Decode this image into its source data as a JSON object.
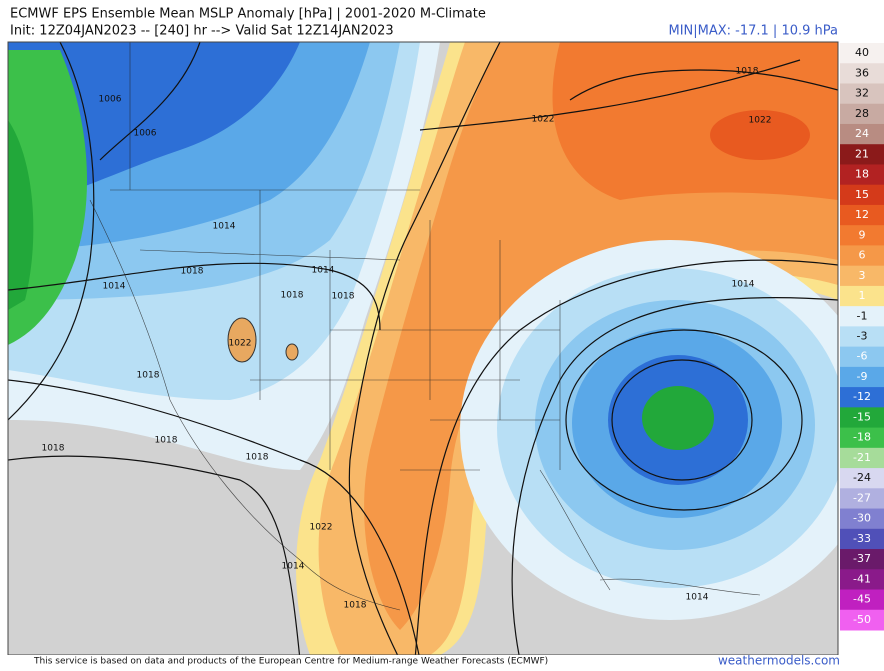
{
  "header": {
    "title": "ECMWF EPS Ensemble Mean MSLP Anomaly [hPa] | 2001-2020 M-Climate",
    "init": "Init: 12Z04JAN2023 -- [240] hr --> Valid Sat 12Z14JAN2023",
    "minmax": "MIN|MAX: -17.1 | 10.9 hPa"
  },
  "isobar_labels": [
    "1006",
    "1006",
    "1014",
    "1018",
    "1014",
    "1014",
    "1018",
    "1018",
    "1022",
    "1018",
    "1018",
    "1018",
    "1018",
    "1022",
    "1014",
    "1018",
    "1014",
    "1022",
    "1018",
    "1022",
    "1014"
  ],
  "colorbar": [
    {
      "label": 40,
      "color": "#f6f1ef"
    },
    {
      "label": 36,
      "color": "#e8dcd8"
    },
    {
      "label": 32,
      "color": "#d8c4be"
    },
    {
      "label": 28,
      "color": "#c8aaa2"
    },
    {
      "label": 24,
      "color": "#b88c82"
    },
    {
      "label": 21,
      "color": "#8b1a1a"
    },
    {
      "label": 18,
      "color": "#b22222"
    },
    {
      "label": 15,
      "color": "#d43a1a"
    },
    {
      "label": 12,
      "color": "#e85a20"
    },
    {
      "label": 9,
      "color": "#f27a30"
    },
    {
      "label": 6,
      "color": "#f59848"
    },
    {
      "label": 3,
      "color": "#f8b868"
    },
    {
      "label": 1,
      "color": "#fbe38c"
    },
    {
      "label": -1,
      "color": "#e4f2fa"
    },
    {
      "label": -3,
      "color": "#b8dff5"
    },
    {
      "label": -6,
      "color": "#8cc8f0"
    },
    {
      "label": -9,
      "color": "#5aa8e8"
    },
    {
      "label": -12,
      "color": "#2d6fd6"
    },
    {
      "label": -15,
      "color": "#22a83a"
    },
    {
      "label": -18,
      "color": "#3cc04a"
    },
    {
      "label": -21,
      "color": "#a6dc9a"
    },
    {
      "label": -24,
      "color": "#d8d8f0"
    },
    {
      "label": -27,
      "color": "#b0b0e0"
    },
    {
      "label": -30,
      "color": "#8080d0"
    },
    {
      "label": -33,
      "color": "#5050b8"
    },
    {
      "label": -37,
      "color": "#6a1a6a"
    },
    {
      "label": -41,
      "color": "#8a1a8a"
    },
    {
      "label": -45,
      "color": "#c020c0"
    },
    {
      "label": -50,
      "color": "#f060f0"
    }
  ],
  "footer": {
    "notice": "This service is based on data and products of the European Centre for Medium-range Weather Forecasts (ECMWF)",
    "credit": "weathermodels.com"
  }
}
